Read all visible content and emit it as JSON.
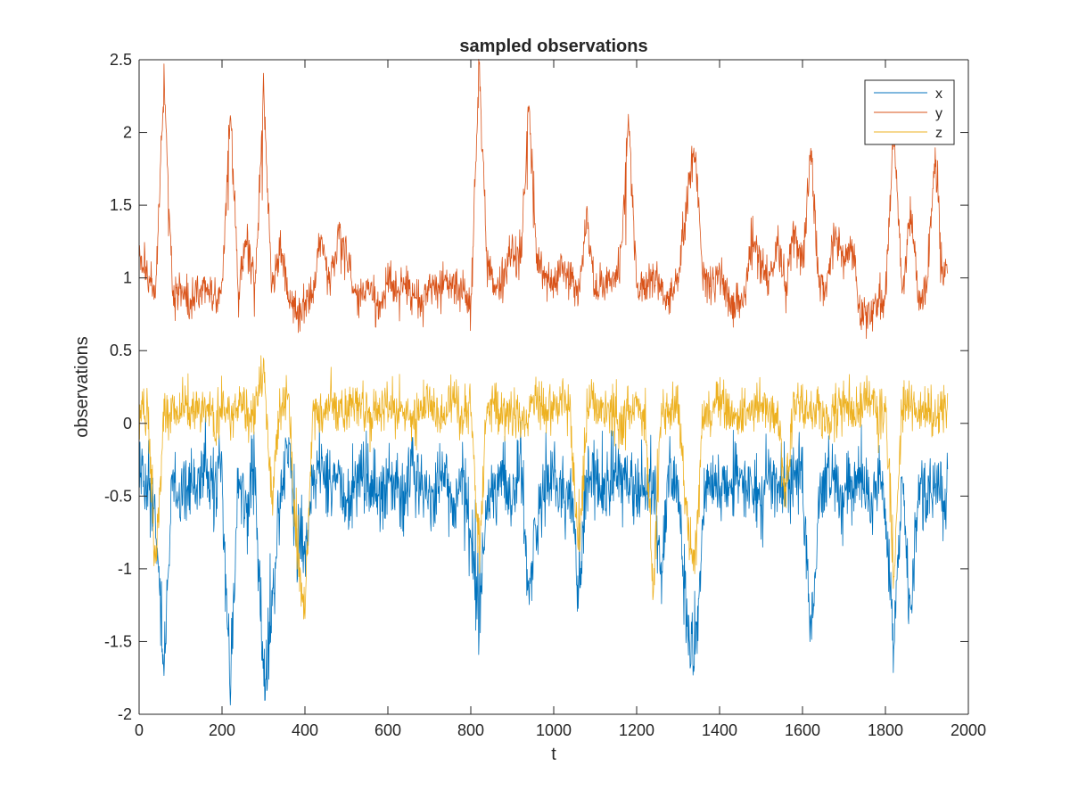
{
  "chart_data": {
    "type": "line",
    "title": "sampled observations",
    "xlabel": "t",
    "ylabel": "observations",
    "xlim": [
      0,
      2000
    ],
    "ylim": [
      -2,
      2.5
    ],
    "x_ticks": [
      0,
      200,
      400,
      600,
      800,
      1000,
      1200,
      1400,
      1600,
      1800,
      2000
    ],
    "y_ticks": [
      -2,
      -1.5,
      -1,
      -0.5,
      0,
      0.5,
      1,
      1.5,
      2,
      2.5
    ],
    "grid": false,
    "legend_position": "top-right",
    "x_range": [
      1,
      1950
    ],
    "series": [
      {
        "name": "x",
        "color": "#0072BD",
        "x": [
          1,
          20,
          40,
          60,
          80,
          100,
          120,
          140,
          160,
          180,
          200,
          220,
          240,
          260,
          280,
          300,
          320,
          340,
          360,
          380,
          400,
          420,
          440,
          460,
          480,
          500,
          520,
          540,
          560,
          580,
          600,
          620,
          640,
          660,
          680,
          700,
          720,
          740,
          760,
          780,
          800,
          820,
          840,
          860,
          880,
          900,
          920,
          940,
          960,
          980,
          1000,
          1020,
          1040,
          1060,
          1080,
          1100,
          1120,
          1140,
          1160,
          1180,
          1200,
          1220,
          1240,
          1260,
          1280,
          1300,
          1320,
          1340,
          1360,
          1380,
          1400,
          1420,
          1440,
          1460,
          1480,
          1500,
          1520,
          1540,
          1560,
          1580,
          1600,
          1620,
          1640,
          1660,
          1680,
          1700,
          1720,
          1740,
          1760,
          1780,
          1800,
          1820,
          1840,
          1860,
          1880,
          1900,
          1920,
          1940,
          1950
        ],
        "values": [
          -0.3,
          -0.45,
          -0.6,
          -1.75,
          -0.4,
          -0.55,
          -0.35,
          -0.5,
          -0.3,
          -0.45,
          -0.35,
          -1.78,
          -0.4,
          -0.6,
          -0.3,
          -1.9,
          -1.4,
          -0.5,
          -0.2,
          -0.8,
          -0.9,
          -0.4,
          -0.3,
          -0.5,
          -0.35,
          -0.6,
          -0.4,
          -0.3,
          -0.45,
          -0.5,
          -0.35,
          -0.4,
          -0.55,
          -0.3,
          -0.4,
          -0.5,
          -0.45,
          -0.3,
          -0.6,
          -0.4,
          -0.8,
          -1.3,
          -0.5,
          -0.4,
          -0.35,
          -0.5,
          -0.3,
          -1.2,
          -0.6,
          -0.4,
          -0.35,
          -0.5,
          -0.45,
          -1.2,
          -0.4,
          -0.3,
          -0.5,
          -0.4,
          -0.35,
          -0.3,
          -0.45,
          -0.5,
          -0.4,
          -1.0,
          -0.3,
          -0.5,
          -1.3,
          -1.68,
          -0.6,
          -0.4,
          -0.35,
          -0.5,
          -0.3,
          -0.45,
          -0.4,
          -0.55,
          -0.3,
          -0.5,
          -0.45,
          -0.35,
          -0.4,
          -1.45,
          -0.6,
          -0.3,
          -0.4,
          -0.5,
          -0.45,
          -0.3,
          -0.55,
          -0.4,
          -0.6,
          -1.5,
          -0.4,
          -1.35,
          -0.45,
          -0.5,
          -0.3,
          -0.55,
          -0.4
        ]
      },
      {
        "name": "y",
        "color": "#D95319",
        "x": [
          1,
          20,
          40,
          60,
          80,
          100,
          120,
          140,
          160,
          180,
          200,
          220,
          240,
          260,
          280,
          300,
          320,
          340,
          360,
          380,
          400,
          420,
          440,
          460,
          480,
          500,
          520,
          540,
          560,
          580,
          600,
          620,
          640,
          660,
          680,
          700,
          720,
          740,
          760,
          780,
          800,
          820,
          840,
          860,
          880,
          900,
          920,
          940,
          960,
          980,
          1000,
          1020,
          1040,
          1060,
          1080,
          1100,
          1120,
          1140,
          1160,
          1180,
          1200,
          1220,
          1240,
          1260,
          1280,
          1300,
          1320,
          1340,
          1360,
          1380,
          1400,
          1420,
          1440,
          1460,
          1480,
          1500,
          1520,
          1540,
          1560,
          1580,
          1600,
          1620,
          1640,
          1660,
          1680,
          1700,
          1720,
          1740,
          1760,
          1780,
          1800,
          1820,
          1840,
          1860,
          1880,
          1900,
          1920,
          1940,
          1950
        ],
        "values": [
          1.2,
          1.0,
          0.9,
          2.35,
          0.95,
          0.9,
          0.85,
          0.9,
          0.95,
          0.85,
          0.9,
          2.15,
          0.9,
          1.3,
          0.95,
          2.3,
          0.9,
          1.2,
          0.9,
          0.75,
          0.8,
          0.9,
          1.3,
          0.95,
          1.3,
          1.2,
          0.85,
          0.95,
          0.9,
          0.8,
          1.0,
          0.9,
          0.95,
          0.9,
          0.85,
          0.95,
          0.9,
          1.0,
          0.95,
          0.9,
          0.8,
          2.45,
          1.1,
          0.95,
          1.0,
          1.2,
          1.1,
          2.2,
          1.1,
          1.0,
          0.95,
          1.1,
          1.0,
          0.9,
          1.4,
          0.9,
          0.95,
          1.0,
          1.1,
          2.1,
          0.95,
          0.9,
          1.0,
          0.9,
          0.85,
          1.0,
          1.5,
          1.9,
          1.0,
          0.95,
          1.0,
          0.9,
          0.8,
          0.9,
          1.3,
          1.1,
          1.0,
          1.3,
          0.9,
          1.4,
          1.1,
          1.9,
          0.9,
          1.0,
          1.3,
          1.1,
          1.2,
          0.7,
          0.75,
          0.8,
          0.9,
          2.05,
          0.9,
          1.5,
          0.85,
          0.95,
          1.85,
          1.0,
          1.1
        ]
      },
      {
        "name": "z",
        "color": "#EDB120",
        "x": [
          1,
          20,
          40,
          60,
          80,
          100,
          120,
          140,
          160,
          180,
          200,
          220,
          240,
          260,
          280,
          300,
          320,
          340,
          360,
          380,
          400,
          420,
          440,
          460,
          480,
          500,
          520,
          540,
          560,
          580,
          600,
          620,
          640,
          660,
          680,
          700,
          720,
          740,
          760,
          780,
          800,
          820,
          840,
          860,
          880,
          900,
          920,
          940,
          960,
          980,
          1000,
          1020,
          1040,
          1060,
          1080,
          1100,
          1120,
          1140,
          1160,
          1180,
          1200,
          1220,
          1240,
          1260,
          1280,
          1300,
          1320,
          1340,
          1360,
          1380,
          1400,
          1420,
          1440,
          1460,
          1480,
          1500,
          1520,
          1540,
          1560,
          1580,
          1600,
          1620,
          1640,
          1660,
          1680,
          1700,
          1720,
          1740,
          1760,
          1780,
          1800,
          1820,
          1840,
          1860,
          1880,
          1900,
          1920,
          1940,
          1950
        ],
        "values": [
          0.05,
          0.1,
          -1.0,
          0.1,
          0.05,
          0.1,
          0.15,
          0.05,
          0.1,
          0.0,
          0.1,
          0.05,
          0.15,
          0.1,
          0.05,
          0.4,
          -0.5,
          0.1,
          0.2,
          -0.9,
          -1.3,
          0.1,
          0.05,
          0.15,
          0.1,
          0.05,
          0.2,
          0.1,
          0.05,
          0.1,
          0.15,
          0.05,
          0.1,
          0.0,
          0.1,
          0.15,
          0.05,
          0.1,
          0.2,
          0.05,
          0.1,
          -0.9,
          0.15,
          0.1,
          0.05,
          0.1,
          0.0,
          0.1,
          0.15,
          0.05,
          0.1,
          0.2,
          0.05,
          -1.0,
          0.1,
          0.15,
          0.05,
          0.1,
          0.0,
          0.1,
          0.15,
          0.05,
          -1.2,
          0.1,
          0.05,
          0.15,
          -0.6,
          -1.0,
          0.1,
          0.05,
          0.15,
          0.1,
          0.0,
          0.1,
          0.05,
          0.15,
          0.1,
          0.05,
          -0.5,
          0.1,
          0.15,
          0.05,
          0.1,
          0.0,
          0.1,
          0.15,
          0.05,
          0.1,
          0.2,
          0.05,
          0.1,
          -1.1,
          0.1,
          0.15,
          0.05,
          0.1,
          0.0,
          0.1,
          0.05
        ]
      }
    ]
  }
}
